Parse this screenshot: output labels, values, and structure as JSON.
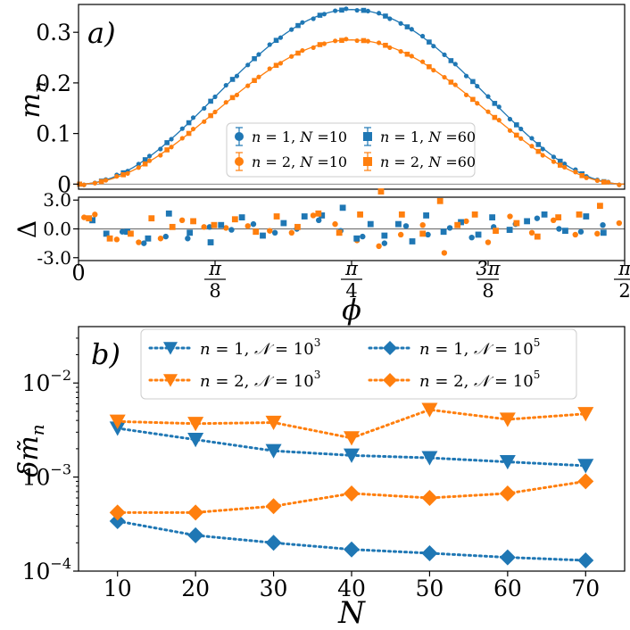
{
  "colors": {
    "blue": "#1f77b4",
    "orange": "#ff7f0e",
    "axis": "#000000",
    "legend_border": "#cccccc"
  },
  "chart_data": [
    {
      "panel": "a",
      "type": "line",
      "panel_label": "a)",
      "ylabel": "m_n",
      "xlim": [
        0,
        1.5708
      ],
      "ylim": [
        -0.01,
        0.355
      ],
      "yticks": [
        0,
        0.1,
        0.2,
        0.3
      ],
      "ytick_labels": [
        "0",
        "0.1",
        "0.2",
        "0.3"
      ],
      "grid": false,
      "legend_position": "lower-center",
      "legend": [
        {
          "n": "1",
          "N": "10",
          "color": "blue",
          "marker": "circle"
        },
        {
          "n": "2",
          "N": "10",
          "color": "orange",
          "marker": "circle"
        },
        {
          "n": "1",
          "N": "60",
          "color": "blue",
          "marker": "square"
        },
        {
          "n": "2",
          "N": "60",
          "color": "orange",
          "marker": "square"
        }
      ],
      "series_model": {
        "n1_peak": 0.345,
        "n2_peak": 0.285,
        "shape": "sin^2(2*phi)",
        "points": 50
      }
    },
    {
      "panel": "a-residual",
      "type": "scatter",
      "ylabel": "Δ",
      "ylim": [
        -3.3,
        3.3
      ],
      "yticks": [
        3.0,
        0.0,
        -3.0
      ],
      "ytick_labels": [
        "3.0",
        "0.0",
        "-3.0"
      ],
      "xticks": [
        0,
        0.3927,
        0.7854,
        1.1781,
        1.5708
      ],
      "xtick_labels": [
        {
          "type": "plain",
          "text": "0"
        },
        {
          "type": "frac",
          "num": "π",
          "den": "8"
        },
        {
          "type": "frac",
          "num": "π",
          "den": "4"
        },
        {
          "type": "frac",
          "num": "3π",
          "den": "8"
        },
        {
          "type": "frac",
          "num": "π",
          "den": "2"
        }
      ],
      "xlabel": "ϕ",
      "series": [
        {
          "name": "n=1, N=10",
          "color": "blue",
          "marker": "circle",
          "x": [
            0.126,
            0.188,
            0.251,
            0.314,
            0.377,
            0.44,
            0.503,
            0.565,
            0.628,
            0.691,
            0.754,
            0.817,
            0.88,
            0.942,
            1.005,
            1.068,
            1.131,
            1.194,
            1.257,
            1.319,
            1.382,
            1.445,
            1.508
          ],
          "values": [
            -0.3,
            -1.5,
            -0.8,
            -1.0,
            0.2,
            -0.1,
            0.5,
            -0.4,
            0.0,
            0.9,
            -0.2,
            -0.8,
            -1.5,
            0.3,
            -0.6,
            0.1,
            -0.9,
            0.2,
            0.5,
            1.1,
            0.0,
            -0.3,
            0.4
          ]
        },
        {
          "name": "n=2, N=10",
          "color": "orange",
          "marker": "circle",
          "x": [
            0.016,
            0.047,
            0.11,
            0.173,
            0.236,
            0.298,
            0.361,
            0.424,
            0.487,
            0.55,
            0.613,
            0.675,
            0.738,
            0.801,
            0.864,
            0.927,
            0.99,
            1.052,
            1.115,
            1.178,
            1.241,
            1.304,
            1.366,
            1.429,
            1.492,
            1.555
          ],
          "values": [
            1.2,
            1.5,
            -1.1,
            -1.4,
            -1.0,
            0.9,
            0.2,
            0.1,
            0.3,
            -0.2,
            -0.4,
            1.4,
            0.5,
            -1.2,
            -1.8,
            -0.6,
            0.4,
            -2.5,
            0.8,
            -1.4,
            1.3,
            -0.4,
            0.9,
            -0.6,
            -0.5,
            0.6
          ]
        },
        {
          "name": "n=1, N=60",
          "color": "blue",
          "marker": "square",
          "x": [
            0.04,
            0.08,
            0.14,
            0.2,
            0.26,
            0.32,
            0.38,
            0.41,
            0.47,
            0.53,
            0.59,
            0.65,
            0.7,
            0.76,
            0.8,
            0.84,
            0.88,
            0.92,
            0.96,
            1.0,
            1.05,
            1.1,
            1.15,
            1.19,
            1.24,
            1.29,
            1.34,
            1.4,
            1.46,
            1.51
          ],
          "values": [
            0.9,
            -0.5,
            -0.3,
            -1.0,
            1.6,
            -0.4,
            -1.4,
            0.4,
            1.2,
            -0.7,
            0.6,
            1.3,
            1.4,
            2.2,
            -1.0,
            0.5,
            -0.7,
            0.5,
            -1.3,
            1.4,
            -0.3,
            0.7,
            -0.6,
            1.2,
            -0.1,
            0.8,
            1.5,
            -0.2,
            1.3,
            -0.4
          ]
        },
        {
          "name": "n=2, N=60",
          "color": "orange",
          "marker": "square",
          "x": [
            0.03,
            0.09,
            0.15,
            0.21,
            0.27,
            0.33,
            0.39,
            0.45,
            0.51,
            0.57,
            0.63,
            0.69,
            0.75,
            0.81,
            0.87,
            0.93,
            0.99,
            1.04,
            1.09,
            1.14,
            1.2,
            1.26,
            1.32,
            1.38,
            1.44,
            1.5
          ],
          "values": [
            1.1,
            -1.0,
            -0.5,
            1.1,
            0.2,
            0.8,
            0.4,
            1.0,
            -0.3,
            1.3,
            0.2,
            1.6,
            -0.4,
            1.5,
            3.9,
            1.5,
            -0.5,
            2.9,
            0.4,
            1.5,
            -0.2,
            0.6,
            -0.8,
            1.2,
            1.5,
            2.4
          ]
        }
      ]
    },
    {
      "panel": "b",
      "type": "line",
      "panel_label": "b)",
      "ylabel": "δm̃_n",
      "xlabel": "N",
      "log_y": true,
      "ylim": [
        0.0001,
        0.0398
      ],
      "yticks": [
        0.0001,
        0.001,
        0.01
      ],
      "ytick_labels": [
        {
          "base": "10",
          "exp": "−4"
        },
        {
          "base": "10",
          "exp": "−3"
        },
        {
          "base": "10",
          "exp": "−2"
        }
      ],
      "xlim": [
        5,
        75
      ],
      "categories": [
        10,
        20,
        30,
        40,
        50,
        60,
        70
      ],
      "xtick_labels": [
        "10",
        "20",
        "30",
        "40",
        "50",
        "60",
        "70"
      ],
      "grid": false,
      "legend_position": "top",
      "series": [
        {
          "n": "1",
          "Nexp": "3",
          "color": "blue",
          "marker": "triangle-down",
          "values": [
            0.0033,
            0.0025,
            0.0019,
            0.0017,
            0.0016,
            0.00145,
            0.00132
          ]
        },
        {
          "n": "2",
          "Nexp": "3",
          "color": "orange",
          "marker": "triangle-down",
          "values": [
            0.0039,
            0.0037,
            0.0038,
            0.0026,
            0.0052,
            0.0041,
            0.0047
          ]
        },
        {
          "n": "1",
          "Nexp": "5",
          "color": "blue",
          "marker": "diamond",
          "values": [
            0.00034,
            0.00024,
            0.0002,
            0.00017,
            0.000155,
            0.00014,
            0.00013
          ]
        },
        {
          "n": "2",
          "Nexp": "5",
          "color": "orange",
          "marker": "diamond",
          "values": [
            0.00042,
            0.00042,
            0.00049,
            0.00067,
            0.0006,
            0.00067,
            0.0009
          ]
        }
      ]
    }
  ]
}
